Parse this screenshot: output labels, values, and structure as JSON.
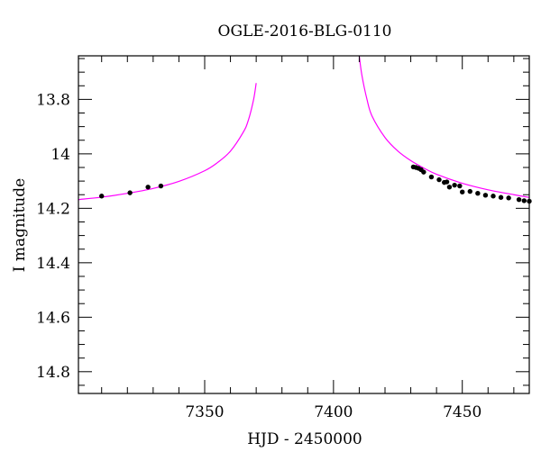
{
  "chart_data": {
    "type": "scatter",
    "title": "OGLE-2016-BLG-0110",
    "xlabel": "HJD - 2450000",
    "ylabel": "I magnitude",
    "xlim": [
      7301,
      7476
    ],
    "ylim": [
      14.88,
      13.64
    ],
    "y_inverted": true,
    "x_ticks": [
      7350,
      7400,
      7450
    ],
    "x_tick_labels": [
      "7350",
      "7400",
      "7450"
    ],
    "y_ticks": [
      13.8,
      14.0,
      14.2,
      14.4,
      14.6,
      14.8
    ],
    "y_tick_labels": [
      "13.8",
      "14",
      "14.2",
      "14.4",
      "14.6",
      "14.8"
    ],
    "grid": false,
    "colors": {
      "model": "#ff00ff",
      "points": "#000000"
    },
    "series": [
      {
        "kind": "points",
        "x": [
          7310,
          7321,
          7328,
          7333,
          7431,
          7432,
          7433,
          7434,
          7435,
          7438,
          7441,
          7443,
          7444,
          7445,
          7447,
          7449,
          7450,
          7453,
          7456,
          7459,
          7462,
          7465,
          7468,
          7472,
          7474,
          7476
        ],
        "y": [
          14.155,
          14.143,
          14.122,
          14.118,
          14.048,
          14.05,
          14.053,
          14.058,
          14.067,
          14.085,
          14.095,
          14.105,
          14.103,
          14.122,
          14.115,
          14.118,
          14.14,
          14.138,
          14.145,
          14.152,
          14.155,
          14.16,
          14.162,
          14.168,
          14.172,
          14.174
        ]
      },
      {
        "kind": "model",
        "t0": 7390,
        "baseline": 14.2,
        "min_mag": 13.64,
        "x_range": [
          7301,
          7476
        ],
        "x": [
          7301,
          7310,
          7320,
          7330,
          7340,
          7350,
          7355,
          7360,
          7365,
          7367,
          7369,
          7370,
          7410,
          7411,
          7413,
          7415,
          7420,
          7425,
          7430,
          7435,
          7440,
          7450,
          7460,
          7470,
          7476
        ],
        "y": [
          14.168,
          14.159,
          14.145,
          14.127,
          14.101,
          14.062,
          14.032,
          13.99,
          13.92,
          13.875,
          13.8,
          13.74,
          13.64,
          13.71,
          13.8,
          13.862,
          13.94,
          13.99,
          14.025,
          14.052,
          14.075,
          14.108,
          14.132,
          14.15,
          14.16
        ]
      }
    ]
  }
}
